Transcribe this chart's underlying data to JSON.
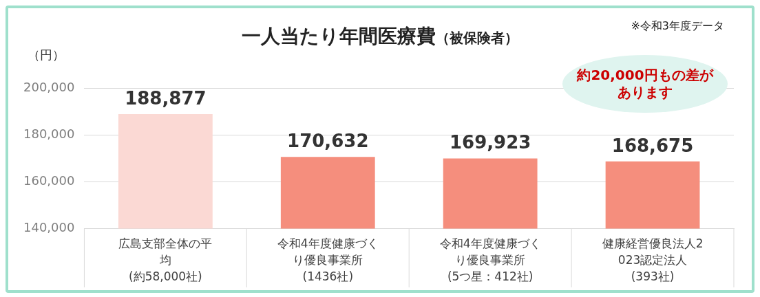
{
  "chart_data": {
    "type": "bar",
    "title": "一人当たり年間医療費",
    "subtitle": "（被保険者）",
    "ylabel": "（円）",
    "categories": [
      "広島支部全体の平均(約58,000社)",
      "令和4年度健康づくり優良事業所(1436社)",
      "令和4年度健康づくり優良事業所(5つ星：412社)",
      "健康経営優良法人2023認定法人(393社)"
    ],
    "values": [
      188877,
      170632,
      169923,
      168675
    ],
    "value_labels": [
      "188,877",
      "170,632",
      "169,923",
      "168,675"
    ],
    "colors": [
      "#fbd9d4",
      "#f58e7d",
      "#f58e7d",
      "#f58e7d"
    ],
    "ylim": [
      140000,
      200000
    ],
    "yticks": [
      {
        "value": 140000,
        "label": "140,000"
      },
      {
        "value": 160000,
        "label": "160,000"
      },
      {
        "value": 180000,
        "label": "180,000"
      },
      {
        "value": 200000,
        "label": "200,000"
      }
    ],
    "grid": "y",
    "legend": false,
    "annotations": [
      "※令和3年度データ",
      "約20,000円もの差があります"
    ]
  }
}
